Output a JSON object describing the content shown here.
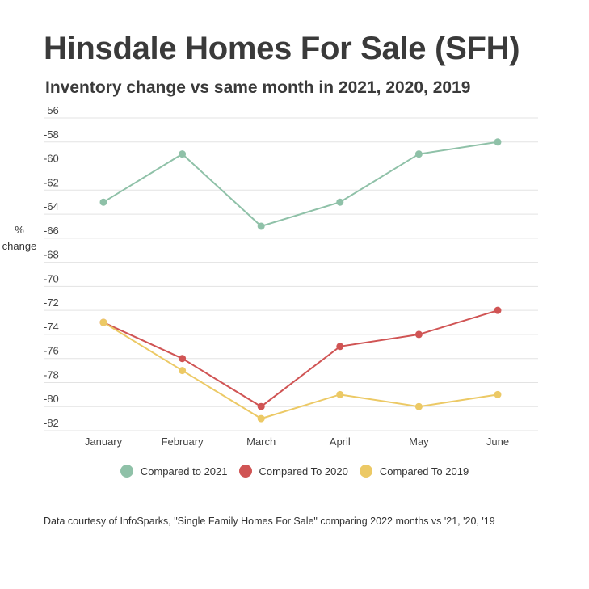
{
  "title": "Hinsdale Homes For Sale (SFH)",
  "subtitle": "Inventory change vs same month in 2021, 2020, 2019",
  "footnote": "Data courtesy of InfoSparks, \"Single Family Homes For Sale\" comparing 2022 months vs '21, '20, '19",
  "chart_data": {
    "type": "line",
    "title": "Hinsdale Homes For Sale (SFH)",
    "subtitle": "Inventory change vs same month in 2021, 2020, 2019",
    "xlabel": "",
    "ylabel": "% change",
    "ylabel_lines": [
      "%",
      "change"
    ],
    "categories": [
      "January",
      "February",
      "March",
      "April",
      "May",
      "June"
    ],
    "ylim": [
      -82,
      -56
    ],
    "yticks": [
      -56,
      -58,
      -60,
      -62,
      -64,
      -66,
      -68,
      -70,
      -72,
      -74,
      -76,
      -78,
      -80,
      -82
    ],
    "grid": true,
    "legend_position": "bottom",
    "series": [
      {
        "name": "Compared to 2021",
        "color": "#8fc1a8",
        "values": [
          -63,
          -59,
          -65,
          -63,
          -59,
          -58
        ]
      },
      {
        "name": "Compared To 2020",
        "color": "#d05454",
        "values": [
          -73,
          -76,
          -80,
          -75,
          -74,
          -72
        ]
      },
      {
        "name": "Compared To 2019",
        "color": "#ecc965",
        "values": [
          -73,
          -77,
          -81,
          -79,
          -80,
          -79
        ]
      }
    ]
  }
}
